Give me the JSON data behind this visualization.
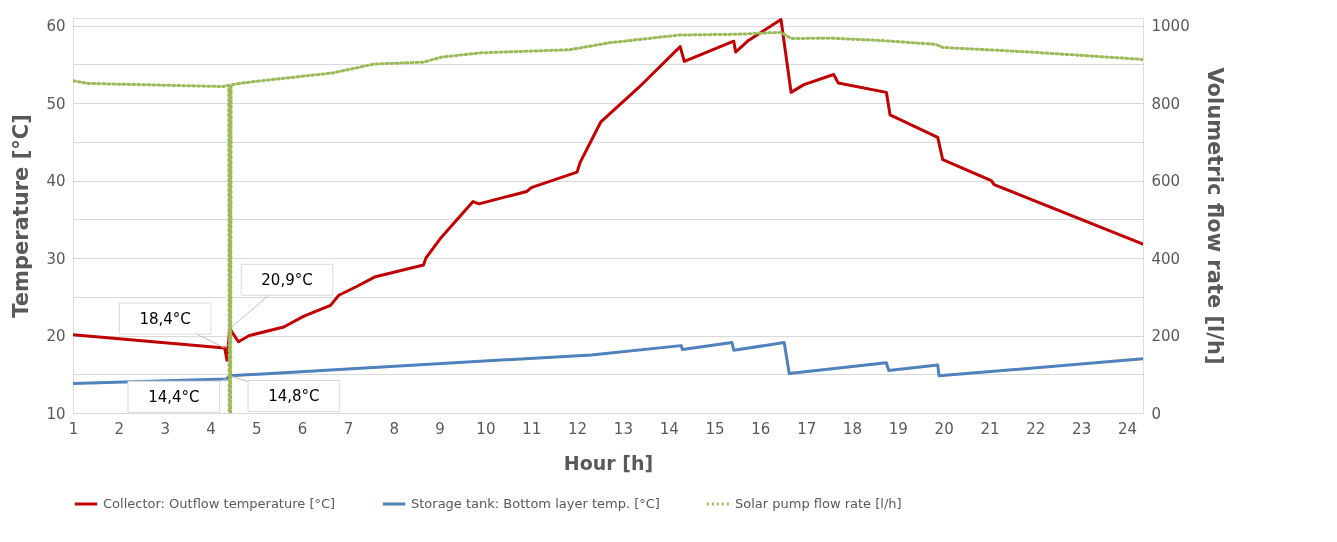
{
  "chart_data": {
    "type": "line",
    "xlabel": "Hour [h]",
    "ylabel": "Temperature [°C]",
    "y2label": "Volumetric flow rate [l/h]",
    "xlim": [
      1,
      24.35
    ],
    "xticks": [
      1,
      2,
      3,
      4,
      5,
      6,
      7,
      8,
      9,
      10,
      11,
      12,
      13,
      14,
      15,
      16,
      17,
      18,
      19,
      20,
      21,
      22,
      23,
      24
    ],
    "ylim": [
      10,
      61
    ],
    "yticks": [
      10,
      {
        "value": 15,
        "label": null
      },
      20,
      {
        "value": 25,
        "label": null
      },
      30,
      {
        "value": 35,
        "label": null
      },
      40,
      {
        "value": 45,
        "label": null
      },
      50,
      {
        "value": 55,
        "label": null
      },
      60
    ],
    "y2lim": [
      0,
      1020
    ],
    "y2ticks": [
      0,
      200,
      400,
      600,
      800,
      1000
    ],
    "grid": "y",
    "legend": "bottom",
    "series": [
      {
        "name": "Collector: Outflow temperature [°C]",
        "color": "#c00000",
        "line_style": "solid",
        "x": [
          1,
          4.31,
          4.36,
          4.42,
          4.61,
          4.85,
          5.6,
          6.04,
          6.62,
          6.8,
          7.18,
          7.6,
          8.65,
          8.7,
          9.04,
          9.73,
          9.86,
          10.9,
          11.0,
          12.0,
          12.07,
          12.52,
          13.34,
          14.25,
          14.34,
          15.42,
          15.46,
          15.74,
          16.45,
          16.67,
          16.95,
          17.6,
          17.7,
          18.75,
          18.83,
          19.87,
          19.98,
          21.04,
          21.1,
          24.35
        ],
        "values": [
          20.1,
          18.4,
          16.8,
          20.9,
          19.2,
          20.0,
          21.1,
          22.5,
          23.9,
          25.2,
          26.3,
          27.6,
          29.1,
          30.0,
          32.7,
          37.3,
          37.0,
          38.6,
          39.1,
          41.1,
          42.4,
          47.6,
          52.0,
          57.3,
          55.4,
          58.0,
          56.6,
          58.1,
          60.8,
          51.4,
          52.4,
          53.7,
          52.6,
          51.4,
          48.5,
          45.6,
          42.7,
          40.0,
          39.5,
          31.8
        ]
      },
      {
        "name": "Storage tank: Bottom layer temp. [°C]",
        "color": "#4f81bd",
        "line_style": "solid",
        "x": [
          1,
          4.35,
          4.42,
          12.31,
          14.27,
          14.3,
          15.38,
          15.42,
          16.52,
          16.63,
          18.75,
          18.8,
          19.87,
          19.9,
          24.35
        ],
        "values": [
          13.8,
          14.4,
          14.8,
          17.5,
          18.7,
          18.2,
          19.1,
          18.1,
          19.1,
          15.1,
          16.5,
          15.5,
          16.2,
          14.8,
          17.0
        ]
      },
      {
        "name": "Solar pump flow rate [l/h]",
        "color": "#9bbb59",
        "line_style": "dotted",
        "axis": "y2",
        "x": [
          1,
          1.32,
          4.26,
          4.4,
          4.41,
          4.44,
          4.45,
          4.96,
          6.66,
          7.57,
          8.65,
          9.04,
          9.9,
          11.83,
          12.71,
          14.23,
          15.5,
          16.45,
          16.67,
          17.5,
          18.62,
          19.83,
          19.98,
          21.9,
          24.35
        ],
        "values": [
          858,
          851,
          843,
          846,
          0,
          0,
          848,
          856,
          878,
          901,
          906,
          919,
          930,
          938,
          956,
          976,
          978,
          983,
          967,
          968,
          962,
          952,
          944,
          932,
          913
        ]
      }
    ],
    "annotations": [
      {
        "text": "18,4°C",
        "x": 4.31,
        "y": 18.4
      },
      {
        "text": "20,9°C",
        "x": 4.42,
        "y": 20.9
      },
      {
        "text": "14,4°C",
        "x": 4.35,
        "y": 14.4
      },
      {
        "text": "14,8°C",
        "x": 4.42,
        "y": 14.8
      }
    ]
  }
}
